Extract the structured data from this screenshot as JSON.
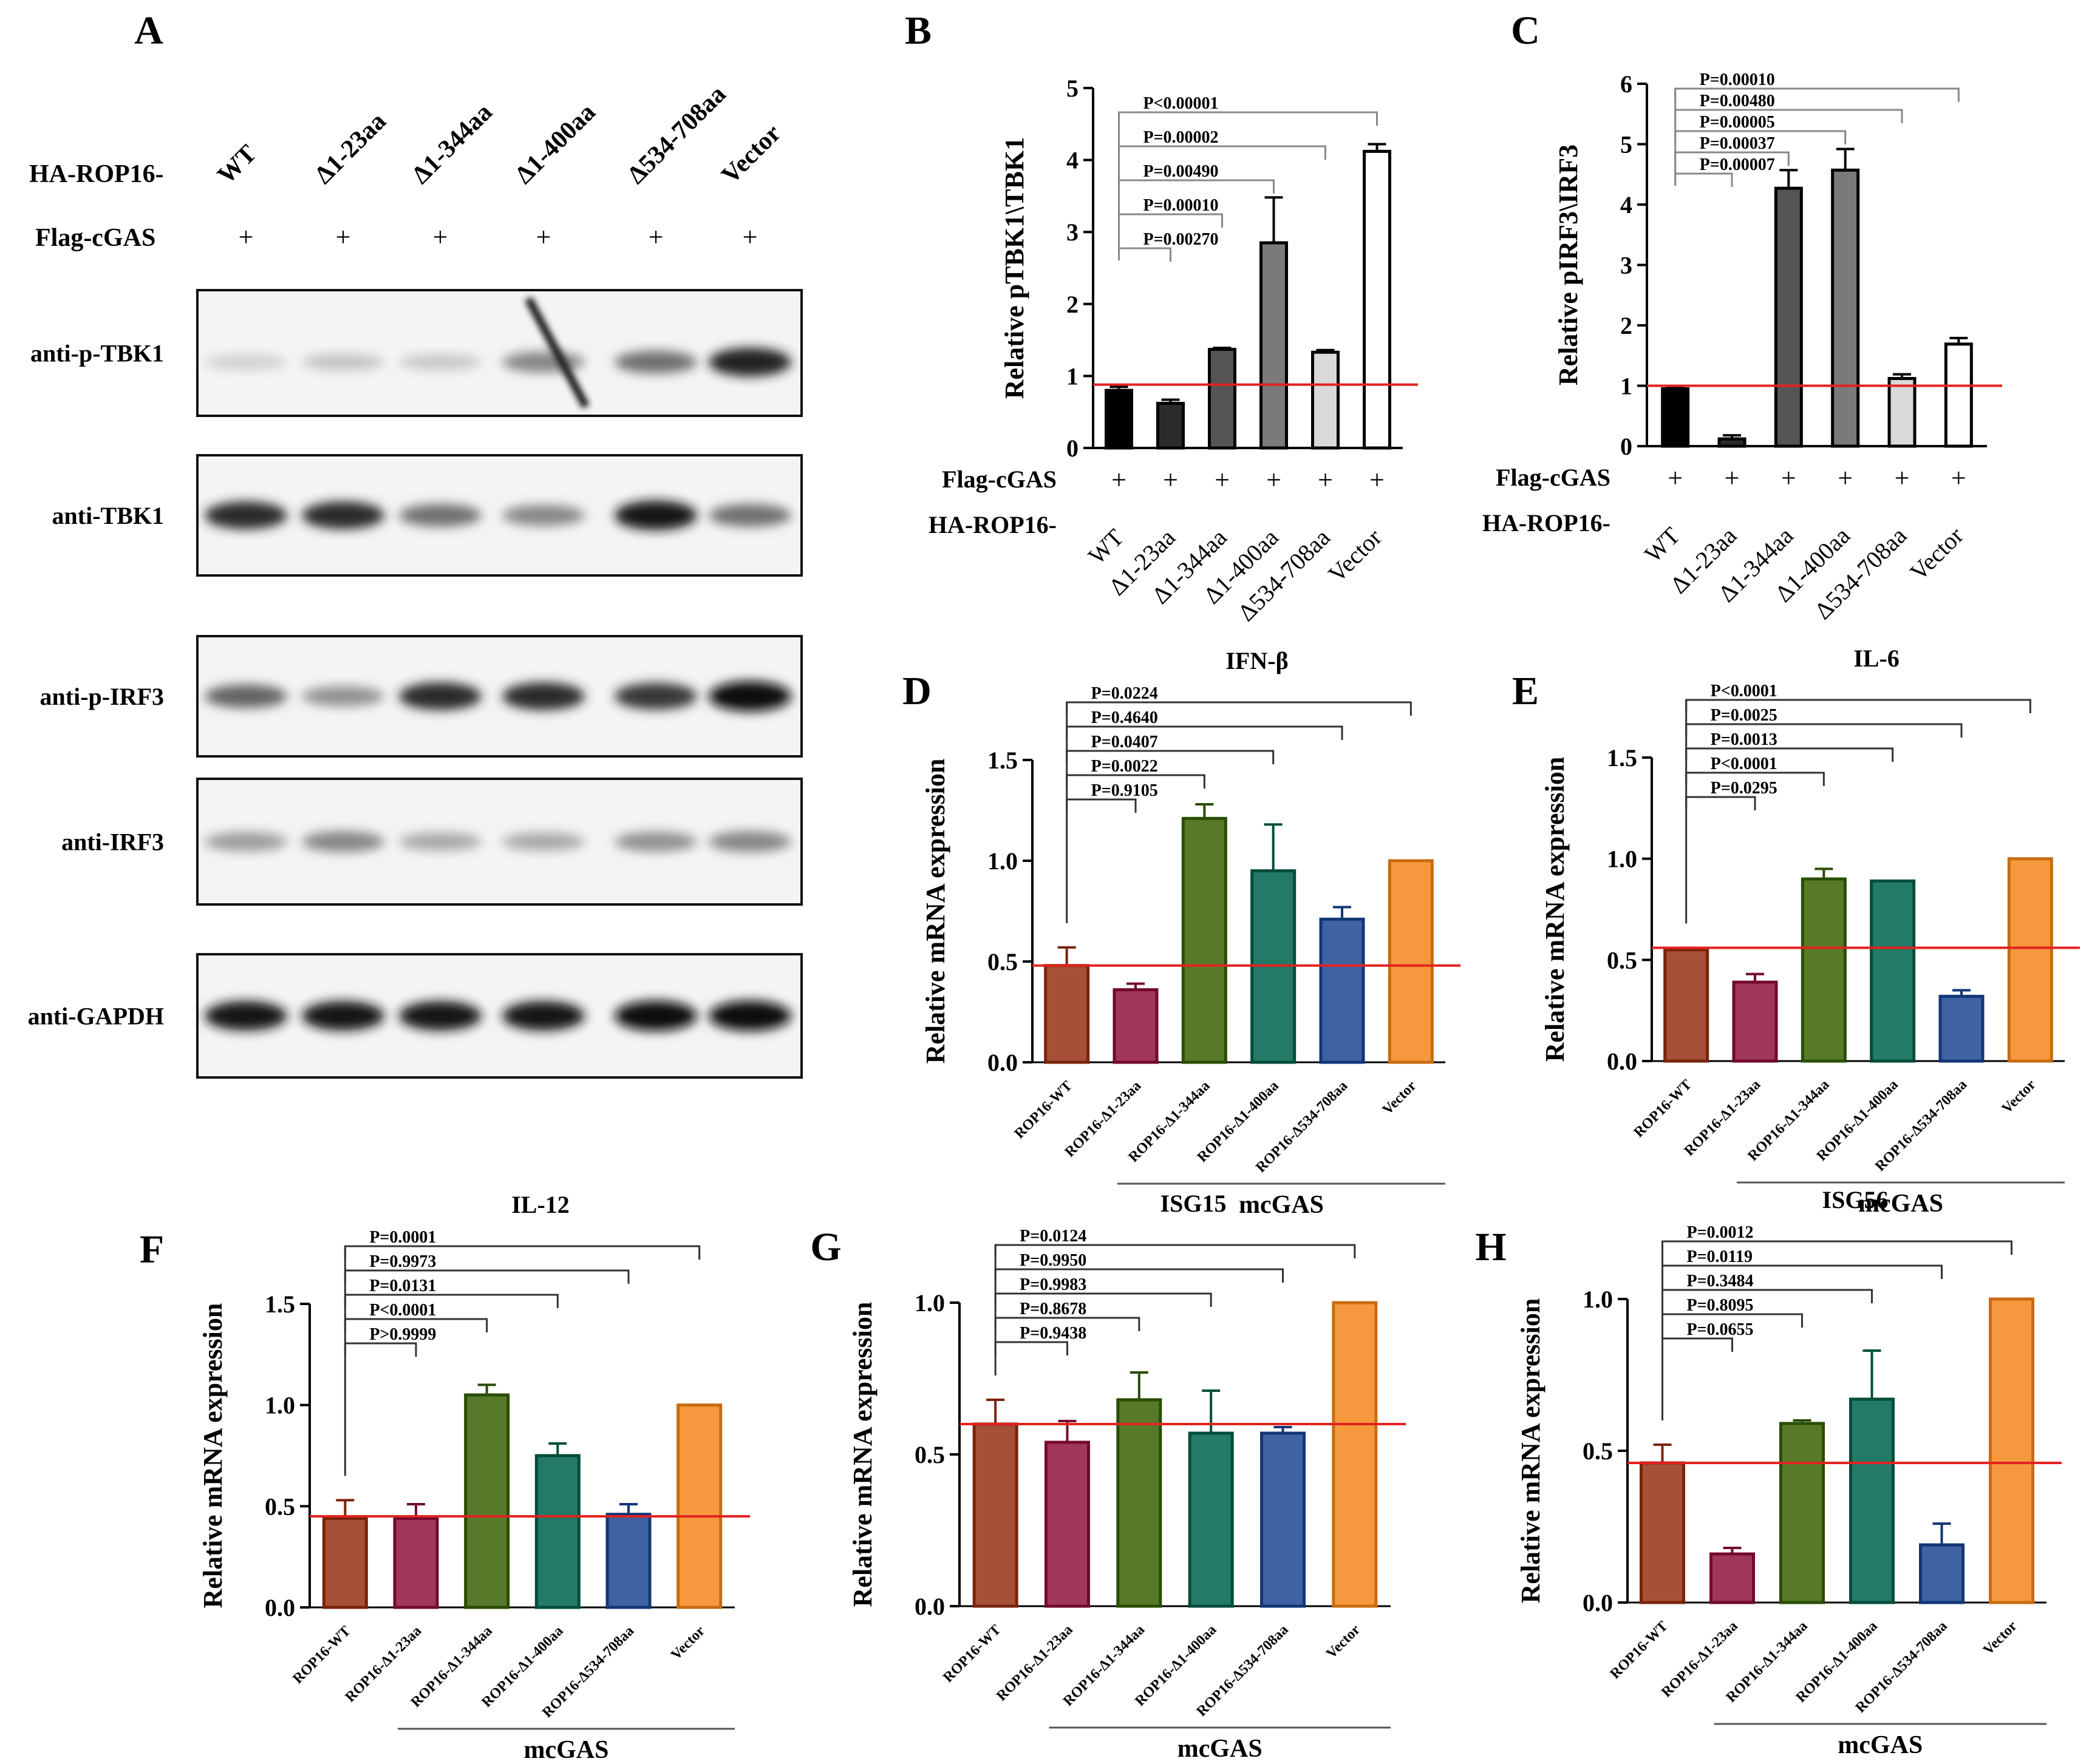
{
  "figure": {
    "panel_letters": [
      "A",
      "B",
      "C",
      "D",
      "E",
      "F",
      "G",
      "H"
    ]
  },
  "panel_a": {
    "letter": "A",
    "row_label_rop": "HA-ROP16-",
    "row_label_cgas": "Flag-cGAS",
    "lane_labels": [
      "WT",
      "Δ1-23aa",
      "Δ1-344aa",
      "Δ1-400aa",
      "Δ534-708aa",
      "Vector"
    ],
    "plus_sign": "+",
    "blots": [
      {
        "label": "anti-p-TBK1",
        "intensity": [
          0.12,
          0.18,
          0.16,
          0.45,
          0.55,
          0.9
        ]
      },
      {
        "label": "anti-TBK1",
        "intensity": [
          0.85,
          0.85,
          0.55,
          0.45,
          0.95,
          0.55
        ]
      },
      {
        "label": "anti-p-IRF3",
        "intensity": [
          0.6,
          0.4,
          0.85,
          0.85,
          0.8,
          1.0
        ]
      },
      {
        "label": "anti-IRF3",
        "intensity": [
          0.35,
          0.45,
          0.3,
          0.3,
          0.4,
          0.45
        ]
      },
      {
        "label": "anti-GAPDH",
        "intensity": [
          0.95,
          0.95,
          0.95,
          0.95,
          1.0,
          1.0
        ]
      }
    ]
  },
  "chart_data": [
    {
      "panel": "B",
      "type": "bar",
      "ylabel": "Relative pTBK1\\TBK1",
      "ylim": [
        0,
        5
      ],
      "yticks": [
        "0",
        "1",
        "2",
        "3",
        "4",
        "5"
      ],
      "categories": [
        "WT",
        "Δ1-23aa",
        "Δ1-344aa",
        "Δ1-400aa",
        "Δ534-708aa",
        "Vector"
      ],
      "values": [
        0.8,
        0.62,
        1.37,
        2.85,
        1.33,
        4.12
      ],
      "errors": [
        0.05,
        0.05,
        0.02,
        0.63,
        0.03,
        0.1
      ],
      "reference_line": 0.88,
      "colors": [
        "#000000",
        "#2b2b2b",
        "#555555",
        "#7a7a7a",
        "#d9d9d9",
        "#ffffff"
      ],
      "row_labels": [
        "Flag-cGAS",
        "HA-ROP16-"
      ],
      "plus_sign": "+",
      "pvalues": [
        "P<0.00001",
        "P=0.00002",
        "P=0.00490",
        "P=0.00010",
        "P=0.00270"
      ]
    },
    {
      "panel": "C",
      "type": "bar",
      "ylabel": "Relative pIRF3\\IRF3",
      "ylim": [
        0,
        6
      ],
      "yticks": [
        "0",
        "1",
        "2",
        "3",
        "4",
        "5",
        "6"
      ],
      "categories": [
        "WT",
        "Δ1-23aa",
        "Δ1-344aa",
        "Δ1-400aa",
        "Δ534-708aa",
        "Vector"
      ],
      "values": [
        0.95,
        0.12,
        4.27,
        4.57,
        1.12,
        1.69
      ],
      "errors": [
        0.02,
        0.06,
        0.3,
        0.35,
        0.07,
        0.1
      ],
      "reference_line": 1.0,
      "colors": [
        "#000000",
        "#2b2b2b",
        "#555555",
        "#7a7a7a",
        "#d9d9d9",
        "#ffffff"
      ],
      "row_labels": [
        "Flag-cGAS",
        "HA-ROP16-"
      ],
      "plus_sign": "+",
      "pvalues": [
        "P=0.00010",
        "P=0.00480",
        "P=0.00005",
        "P=0.00037",
        "P=0.00007"
      ]
    },
    {
      "panel": "D",
      "type": "bar",
      "title": "IFN-β",
      "ylabel": "Relative mRNA expression",
      "ylim": [
        0,
        1.5
      ],
      "yticks": [
        "0.0",
        "0.5",
        "1.0",
        "1.5"
      ],
      "categories": [
        "ROP16-WT",
        "ROP16-Δ1-23aa",
        "ROP16-Δ1-344aa",
        "ROP16-Δ1-400aa",
        "ROP16-Δ534-708aa",
        "Vector"
      ],
      "values": [
        0.48,
        0.36,
        1.21,
        0.95,
        0.71,
        1.0
      ],
      "errors": [
        0.09,
        0.03,
        0.07,
        0.23,
        0.06,
        0.0
      ],
      "reference_line": 0.48,
      "colors": [
        "#a65038",
        "#a0365a",
        "#577a2a",
        "#237a66",
        "#3f62a3",
        "#f5983e"
      ],
      "group_label": "mcGAS",
      "pvalues": [
        "P=0.0224",
        "P=0.4640",
        "P=0.0407",
        "P=0.0022",
        "P=0.9105"
      ]
    },
    {
      "panel": "E",
      "type": "bar",
      "title": "IL-6",
      "ylabel": "Relative mRNA expression",
      "ylim": [
        0,
        1.5
      ],
      "yticks": [
        "0.0",
        "0.5",
        "1.0",
        "1.5"
      ],
      "categories": [
        "ROP16-WT",
        "ROP16-Δ1-23aa",
        "ROP16-Δ1-344aa",
        "ROP16-Δ1-400aa",
        "ROP16-Δ534-708aa",
        "Vector"
      ],
      "values": [
        0.55,
        0.39,
        0.9,
        0.89,
        0.32,
        1.0
      ],
      "errors": [
        0.01,
        0.04,
        0.05,
        0.0,
        0.03,
        0.0
      ],
      "reference_line": 0.56,
      "colors": [
        "#a65038",
        "#a0365a",
        "#577a2a",
        "#237a66",
        "#3f62a3",
        "#f5983e"
      ],
      "group_label": "mcGAS",
      "pvalues": [
        "P<0.0001",
        "P=0.0025",
        "P=0.0013",
        "P<0.0001",
        "P=0.0295"
      ]
    },
    {
      "panel": "F",
      "type": "bar",
      "title": "IL-12",
      "ylabel": "Relative mRNA expression",
      "ylim": [
        0,
        1.5
      ],
      "yticks": [
        "0.0",
        "0.5",
        "1.0",
        "1.5"
      ],
      "categories": [
        "ROP16-WT",
        "ROP16-Δ1-23aa",
        "ROP16-Δ1-344aa",
        "ROP16-Δ1-400aa",
        "ROP16-Δ534-708aa",
        "Vector"
      ],
      "values": [
        0.44,
        0.44,
        1.05,
        0.75,
        0.46,
        1.0
      ],
      "errors": [
        0.09,
        0.07,
        0.05,
        0.06,
        0.05,
        0.0
      ],
      "reference_line": 0.45,
      "colors": [
        "#a65038",
        "#a0365a",
        "#577a2a",
        "#237a66",
        "#3f62a3",
        "#f5983e"
      ],
      "group_label": "mcGAS",
      "pvalues": [
        "P=0.0001",
        "P=0.9973",
        "P=0.0131",
        "P<0.0001",
        "P>0.9999"
      ]
    },
    {
      "panel": "G",
      "type": "bar",
      "title": "ISG15",
      "ylabel": "Relative mRNA expression",
      "ylim": [
        0,
        1.0
      ],
      "yticks": [
        "0.0",
        "0.5",
        "1.0"
      ],
      "categories": [
        "ROP16-WT",
        "ROP16-Δ1-23aa",
        "ROP16-Δ1-344aa",
        "ROP16-Δ1-400aa",
        "ROP16-Δ534-708aa",
        "Vector"
      ],
      "values": [
        0.6,
        0.54,
        0.68,
        0.57,
        0.57,
        1.0
      ],
      "errors": [
        0.08,
        0.07,
        0.09,
        0.14,
        0.02,
        0.0
      ],
      "reference_line": 0.6,
      "colors": [
        "#a65038",
        "#a0365a",
        "#577a2a",
        "#237a66",
        "#3f62a3",
        "#f5983e"
      ],
      "group_label": "mcGAS",
      "pvalues": [
        "P=0.0124",
        "P=0.9950",
        "P=0.9983",
        "P=0.8678",
        "P=0.9438"
      ]
    },
    {
      "panel": "H",
      "type": "bar",
      "title": "ISG56",
      "ylabel": "Relative mRNA expression",
      "ylim": [
        0,
        1.0
      ],
      "yticks": [
        "0.0",
        "0.5",
        "1.0"
      ],
      "categories": [
        "ROP16-WT",
        "ROP16-Δ1-23aa",
        "ROP16-Δ1-344aa",
        "ROP16-Δ1-400aa",
        "ROP16-Δ534-708aa",
        "Vector"
      ],
      "values": [
        0.46,
        0.16,
        0.59,
        0.67,
        0.19,
        1.0
      ],
      "errors": [
        0.06,
        0.02,
        0.01,
        0.16,
        0.07,
        0.0
      ],
      "reference_line": 0.46,
      "colors": [
        "#a65038",
        "#a0365a",
        "#577a2a",
        "#237a66",
        "#3f62a3",
        "#f5983e"
      ],
      "group_label": "mcGAS",
      "pvalues": [
        "P=0.0012",
        "P=0.0119",
        "P=0.3484",
        "P=0.8095",
        "P=0.0655"
      ]
    }
  ]
}
